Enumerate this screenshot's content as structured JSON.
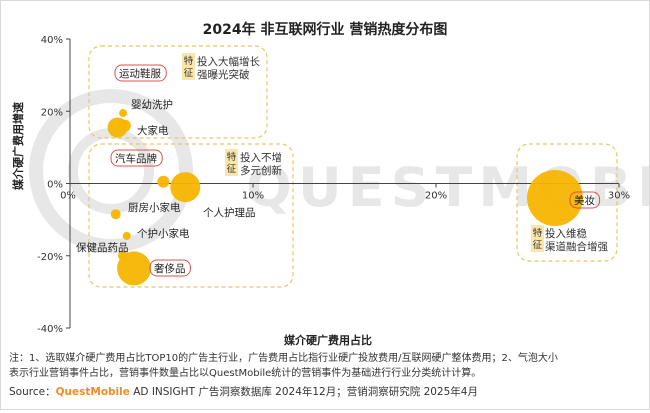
{
  "chart_data": {
    "type": "scatter",
    "title": "2024年 非互联网行业 营销热度分布图",
    "xlabel": "媒介硬广费用占比",
    "ylabel": "媒介硬广费用增速",
    "xlim": [
      0,
      30
    ],
    "ylim": [
      -40,
      40
    ],
    "x_ticks": [
      {
        "value": 0,
        "label": "0%"
      },
      {
        "value": 10,
        "label": "10%"
      },
      {
        "value": 20,
        "label": "20%"
      },
      {
        "value": 30,
        "label": "30%"
      }
    ],
    "y_ticks": [
      {
        "value": 40,
        "label": "40%"
      },
      {
        "value": 20,
        "label": "20%"
      },
      {
        "value": 0,
        "label": "0%"
      },
      {
        "value": -20,
        "label": "-20%"
      },
      {
        "value": -40,
        "label": "-40%"
      }
    ],
    "bubble_color": "#F7B500",
    "label_box_color": "#D9534F",
    "group_box_color": "#E8C766",
    "points": [
      {
        "label": "运动鞋服",
        "x": 2.6,
        "y": 15.5,
        "r": 10,
        "boxed": true
      },
      {
        "label": "婴幼洗护",
        "x": 2.9,
        "y": 19.5,
        "r": 4,
        "boxed": false
      },
      {
        "label": "大家电",
        "x": 3.0,
        "y": 16.0,
        "r": 6,
        "boxed": false
      },
      {
        "label": "汽车品牌",
        "x": 5.1,
        "y": 0.5,
        "r": 6,
        "boxed": true
      },
      {
        "label": "个人护理品",
        "x": 6.3,
        "y": -1.0,
        "r": 15,
        "boxed": false
      },
      {
        "label": "厨房小家电",
        "x": 2.5,
        "y": -8.5,
        "r": 5,
        "boxed": false
      },
      {
        "label": "个护小家电",
        "x": 3.1,
        "y": -14.5,
        "r": 4,
        "boxed": false
      },
      {
        "label": "保健品药品",
        "x": 2.9,
        "y": -20.0,
        "r": 5,
        "boxed": false
      },
      {
        "label": "奢侈品",
        "x": 3.5,
        "y": -23.5,
        "r": 17,
        "boxed": true
      },
      {
        "label": "美妆",
        "x": 26.5,
        "y": -4.0,
        "r": 28,
        "boxed": true
      }
    ],
    "groups": [
      {
        "tag": [
          "特",
          "征"
        ],
        "lines": [
          "投入大幅增长",
          "强曝光突破"
        ]
      },
      {
        "tag": [
          "特",
          "征"
        ],
        "lines": [
          "投入不增",
          "多元创新"
        ]
      },
      {
        "tag": [
          "特",
          "征"
        ],
        "lines": [
          "投入维稳",
          "渠道融合增强"
        ]
      }
    ]
  },
  "watermark": "QUESTMOBILE",
  "footer": {
    "note_line1": "注：1、选取媒介硬广费用占比TOP10的广告主行业，广告费用占比指行业硬广投放费用/互联网硬广整体费用；2、气泡大小",
    "note_line2": "表示行业营销事件占比，营销事件数量占比以QuestMobile统计的营销事件为基础进行行业分类统计计算。",
    "source_prefix": "Source：",
    "source_brand": "QuestMobile",
    "source_rest": " AD INSIGHT 广告洞察数据库 2024年12月；营销洞察研究院 2025年4月",
    "brand_color": "#F28C28"
  }
}
